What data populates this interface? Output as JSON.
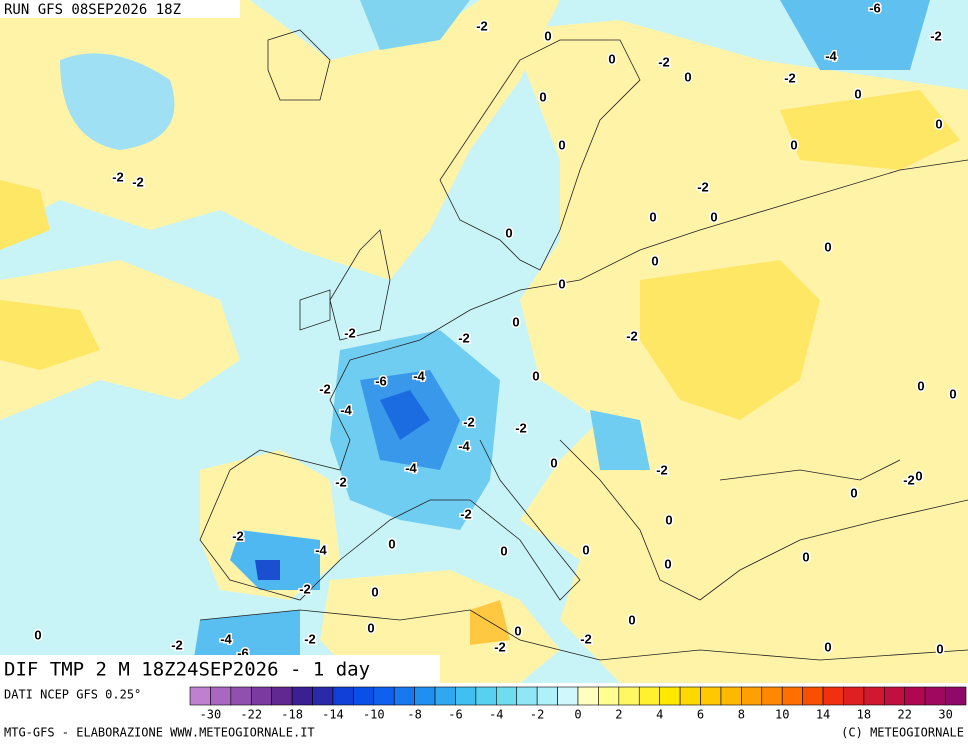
{
  "header": {
    "run": "RUN GFS 08SEP2026 18Z"
  },
  "map": {
    "title": "DIF TMP 2 M 18Z24SEP2026 - 1 day",
    "contour_labels": [
      "-2",
      "-6",
      "-2",
      "0",
      "0",
      "-2",
      "0",
      "-4",
      "-2",
      "0",
      "0",
      "0",
      "0",
      "0",
      "-2",
      "-2",
      "-2",
      "0",
      "0",
      "0",
      "0",
      "0",
      "0",
      "0",
      "-2",
      "-2",
      "-2",
      "-4",
      "-6",
      "0",
      "-2",
      "-4",
      "0",
      "0",
      "-2",
      "-2",
      "-4",
      "0",
      "-4",
      "-2",
      "0",
      "-2",
      "-2",
      "0",
      "-2",
      "0",
      "-2",
      "-4",
      "0",
      "0",
      "0",
      "0",
      "0",
      "-2",
      "0",
      "0",
      "0",
      "0",
      "0",
      "-4",
      "-2",
      "-2",
      "-2",
      "-2",
      "0",
      "0",
      "-6"
    ]
  },
  "footer": {
    "source": "DATI NCEP GFS 0.25°",
    "credit": "MTG-GFS - ELABORAZIONE WWW.METEOGIORNALE.IT",
    "copyright": "(C) METEOGIORNALE"
  },
  "colorbar": {
    "labels": [
      "-30",
      "-22",
      "-18",
      "-14",
      "-10",
      "-8",
      "-6",
      "-4",
      "-2",
      "0",
      "2",
      "4",
      "6",
      "8",
      "10",
      "14",
      "18",
      "22",
      "30"
    ],
    "colors": [
      "#c080d0",
      "#a868c0",
      "#9050b0",
      "#7a3aa0",
      "#602890",
      "#3a2090",
      "#2a2aa8",
      "#1040d8",
      "#0850e8",
      "#1060f0",
      "#1878f0",
      "#2090f0",
      "#30a8f0",
      "#40c0f0",
      "#58d0f0",
      "#70dcf0",
      "#90e6f4",
      "#b0f0f8",
      "#d0f8fc",
      "#ffffc0",
      "#ffff90",
      "#fff860",
      "#fff030",
      "#ffe800",
      "#ffd800",
      "#ffc800",
      "#ffb800",
      "#ffa000",
      "#ff8800",
      "#ff7000",
      "#f85000",
      "#f03010",
      "#e02020",
      "#d01830",
      "#c01040",
      "#b00850",
      "#a00860",
      "#900868"
    ]
  }
}
